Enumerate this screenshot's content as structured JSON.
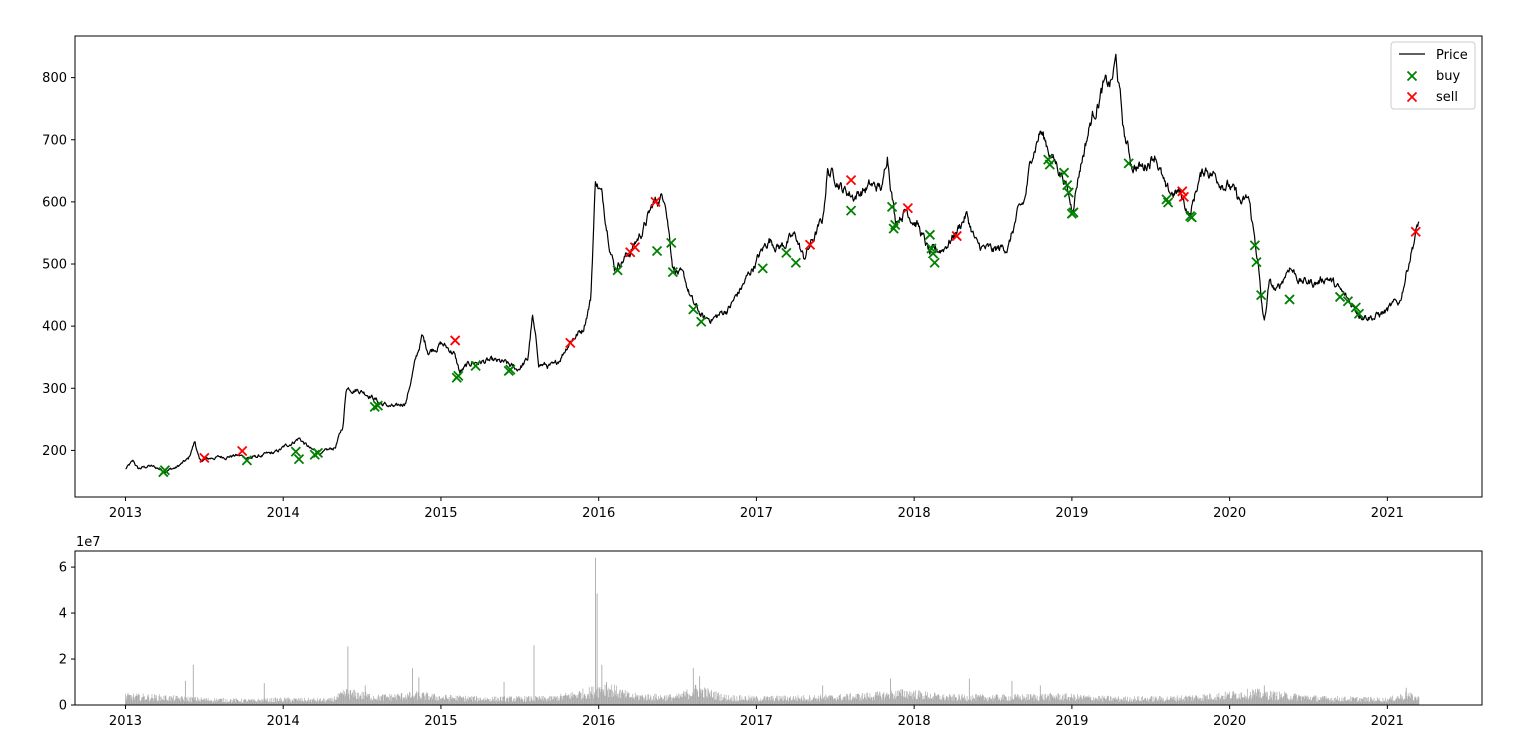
{
  "chart_data": [
    {
      "type": "line",
      "title": "",
      "xlabel": "",
      "ylabel": "",
      "xlim": [
        2012.68,
        2021.6
      ],
      "ylim": [
        125,
        867
      ],
      "x_ticks": [
        2013,
        2014,
        2015,
        2016,
        2017,
        2018,
        2019,
        2020,
        2021
      ],
      "x_tick_labels": [
        "2013",
        "2014",
        "2015",
        "2016",
        "2017",
        "2018",
        "2019",
        "2020",
        "2021"
      ],
      "y_ticks": [
        200,
        300,
        400,
        500,
        600,
        700,
        800
      ],
      "y_tick_labels": [
        "200",
        "300",
        "400",
        "500",
        "600",
        "700",
        "800"
      ],
      "grid": false,
      "legend_position": "top-right",
      "price_anchors": [
        [
          2013.0,
          170
        ],
        [
          2013.05,
          182
        ],
        [
          2013.08,
          170
        ],
        [
          2013.15,
          175
        ],
        [
          2013.25,
          168
        ],
        [
          2013.32,
          172
        ],
        [
          2013.4,
          186
        ],
        [
          2013.44,
          215
        ],
        [
          2013.47,
          182
        ],
        [
          2013.55,
          188
        ],
        [
          2013.7,
          192
        ],
        [
          2013.8,
          188
        ],
        [
          2013.95,
          196
        ],
        [
          2014.05,
          212
        ],
        [
          2014.1,
          220
        ],
        [
          2014.18,
          200
        ],
        [
          2014.25,
          195
        ],
        [
          2014.33,
          205
        ],
        [
          2014.38,
          240
        ],
        [
          2014.4,
          302
        ],
        [
          2014.48,
          298
        ],
        [
          2014.55,
          290
        ],
        [
          2014.62,
          275
        ],
        [
          2014.72,
          268
        ],
        [
          2014.78,
          280
        ],
        [
          2014.83,
          335
        ],
        [
          2014.88,
          383
        ],
        [
          2014.92,
          360
        ],
        [
          2015.0,
          372
        ],
        [
          2015.08,
          358
        ],
        [
          2015.12,
          325
        ],
        [
          2015.2,
          342
        ],
        [
          2015.3,
          343
        ],
        [
          2015.4,
          340
        ],
        [
          2015.48,
          330
        ],
        [
          2015.55,
          345
        ],
        [
          2015.58,
          415
        ],
        [
          2015.62,
          340
        ],
        [
          2015.72,
          333
        ],
        [
          2015.82,
          378
        ],
        [
          2015.9,
          395
        ],
        [
          2015.95,
          445
        ],
        [
          2015.98,
          638
        ],
        [
          2016.02,
          610
        ],
        [
          2016.05,
          565
        ],
        [
          2016.1,
          495
        ],
        [
          2016.2,
          520
        ],
        [
          2016.28,
          555
        ],
        [
          2016.35,
          598
        ],
        [
          2016.42,
          612
        ],
        [
          2016.47,
          500
        ],
        [
          2016.55,
          470
        ],
        [
          2016.6,
          435
        ],
        [
          2016.67,
          410
        ],
        [
          2016.75,
          415
        ],
        [
          2016.83,
          430
        ],
        [
          2016.92,
          468
        ],
        [
          2017.0,
          505
        ],
        [
          2017.08,
          540
        ],
        [
          2017.15,
          528
        ],
        [
          2017.25,
          545
        ],
        [
          2017.3,
          508
        ],
        [
          2017.35,
          535
        ],
        [
          2017.42,
          570
        ],
        [
          2017.45,
          650
        ],
        [
          2017.5,
          642
        ],
        [
          2017.55,
          620
        ],
        [
          2017.62,
          610
        ],
        [
          2017.72,
          625
        ],
        [
          2017.8,
          622
        ],
        [
          2017.83,
          680
        ],
        [
          2017.88,
          572
        ],
        [
          2017.95,
          588
        ],
        [
          2018.02,
          565
        ],
        [
          2018.1,
          515
        ],
        [
          2018.18,
          525
        ],
        [
          2018.25,
          545
        ],
        [
          2018.33,
          580
        ],
        [
          2018.4,
          528
        ],
        [
          2018.5,
          520
        ],
        [
          2018.6,
          530
        ],
        [
          2018.65,
          575
        ],
        [
          2018.7,
          600
        ],
        [
          2018.75,
          680
        ],
        [
          2018.8,
          715
        ],
        [
          2018.88,
          670
        ],
        [
          2018.95,
          640
        ],
        [
          2019.0,
          588
        ],
        [
          2019.05,
          655
        ],
        [
          2019.12,
          730
        ],
        [
          2019.2,
          785
        ],
        [
          2019.25,
          790
        ],
        [
          2019.28,
          828
        ],
        [
          2019.33,
          710
        ],
        [
          2019.38,
          660
        ],
        [
          2019.45,
          655
        ],
        [
          2019.53,
          680
        ],
        [
          2019.6,
          612
        ],
        [
          2019.68,
          615
        ],
        [
          2019.75,
          578
        ],
        [
          2019.8,
          632
        ],
        [
          2019.85,
          655
        ],
        [
          2019.92,
          640
        ],
        [
          2020.0,
          625
        ],
        [
          2020.08,
          595
        ],
        [
          2020.12,
          605
        ],
        [
          2020.18,
          505
        ],
        [
          2020.2,
          440
        ],
        [
          2020.22,
          404
        ],
        [
          2020.25,
          468
        ],
        [
          2020.3,
          455
        ],
        [
          2020.38,
          498
        ],
        [
          2020.45,
          472
        ],
        [
          2020.55,
          470
        ],
        [
          2020.62,
          480
        ],
        [
          2020.72,
          450
        ],
        [
          2020.82,
          422
        ],
        [
          2020.92,
          415
        ],
        [
          2021.0,
          425
        ],
        [
          2021.08,
          440
        ],
        [
          2021.15,
          520
        ],
        [
          2021.2,
          568
        ]
      ],
      "series": [
        {
          "name": "buy",
          "marker": "x",
          "color": "#008000",
          "points": [
            [
              2013.24,
              165
            ],
            [
              2013.25,
              168
            ],
            [
              2013.77,
              184
            ],
            [
              2014.08,
              198
            ],
            [
              2014.1,
              186
            ],
            [
              2014.2,
              193
            ],
            [
              2014.22,
              196
            ],
            [
              2014.58,
              270
            ],
            [
              2014.6,
              272
            ],
            [
              2015.1,
              317
            ],
            [
              2015.11,
              320
            ],
            [
              2015.22,
              336
            ],
            [
              2015.43,
              328
            ],
            [
              2015.44,
              330
            ],
            [
              2016.12,
              490
            ],
            [
              2016.37,
              521
            ],
            [
              2016.46,
              534
            ],
            [
              2016.47,
              487
            ],
            [
              2016.6,
              427
            ],
            [
              2016.65,
              407
            ],
            [
              2017.04,
              493
            ],
            [
              2017.19,
              518
            ],
            [
              2017.25,
              502
            ],
            [
              2017.6,
              586
            ],
            [
              2017.86,
              592
            ],
            [
              2017.87,
              557
            ],
            [
              2017.88,
              563
            ],
            [
              2018.1,
              547
            ],
            [
              2018.11,
              525
            ],
            [
              2018.12,
              517
            ],
            [
              2018.13,
              502
            ],
            [
              2018.85,
              668
            ],
            [
              2018.86,
              660
            ],
            [
              2018.95,
              647
            ],
            [
              2018.97,
              627
            ],
            [
              2018.98,
              615
            ],
            [
              2019.0,
              581
            ],
            [
              2019.01,
              583
            ],
            [
              2019.36,
              662
            ],
            [
              2019.6,
              604
            ],
            [
              2019.61,
              599
            ],
            [
              2019.75,
              577
            ],
            [
              2019.76,
              575
            ],
            [
              2020.16,
              530
            ],
            [
              2020.17,
              503
            ],
            [
              2020.2,
              450
            ],
            [
              2020.38,
              443
            ],
            [
              2020.7,
              447
            ],
            [
              2020.75,
              440
            ],
            [
              2020.8,
              430
            ],
            [
              2020.82,
              420
            ]
          ]
        },
        {
          "name": "sell",
          "marker": "x",
          "color": "#ff0000",
          "points": [
            [
              2013.5,
              188
            ],
            [
              2013.74,
              199
            ],
            [
              2015.09,
              377
            ],
            [
              2015.82,
              373
            ],
            [
              2016.2,
              519
            ],
            [
              2016.23,
              527
            ],
            [
              2016.36,
              600
            ],
            [
              2017.34,
              531
            ],
            [
              2017.6,
              635
            ],
            [
              2017.96,
              590
            ],
            [
              2018.27,
              545
            ],
            [
              2019.7,
              617
            ],
            [
              2019.71,
              608
            ],
            [
              2021.18,
              552
            ]
          ]
        }
      ],
      "price_series_name": "Price",
      "price_color": "#000000"
    },
    {
      "type": "bar",
      "title": "",
      "xlabel": "",
      "ylabel": "",
      "offset_label": "1e7",
      "xlim": [
        2012.68,
        2021.6
      ],
      "ylim": [
        0,
        6.7
      ],
      "x_ticks": [
        2013,
        2014,
        2015,
        2016,
        2017,
        2018,
        2019,
        2020,
        2021
      ],
      "x_tick_labels": [
        "2013",
        "2014",
        "2015",
        "2016",
        "2017",
        "2018",
        "2019",
        "2020",
        "2021"
      ],
      "y_ticks": [
        0,
        2,
        4,
        6
      ],
      "y_tick_labels": [
        "0",
        "2",
        "4",
        "6"
      ],
      "color": "#aaaaaa",
      "volume_profile": [
        [
          2013.0,
          0.4
        ],
        [
          2013.2,
          0.35
        ],
        [
          2013.5,
          0.25
        ],
        [
          2013.8,
          0.2
        ],
        [
          2014.0,
          0.25
        ],
        [
          2014.3,
          0.22
        ],
        [
          2014.4,
          0.55
        ],
        [
          2014.6,
          0.35
        ],
        [
          2014.85,
          0.45
        ],
        [
          2015.0,
          0.35
        ],
        [
          2015.3,
          0.28
        ],
        [
          2015.7,
          0.3
        ],
        [
          2015.95,
          0.6
        ],
        [
          2016.05,
          0.8
        ],
        [
          2016.2,
          0.4
        ],
        [
          2016.5,
          0.35
        ],
        [
          2016.62,
          0.7
        ],
        [
          2016.8,
          0.35
        ],
        [
          2017.0,
          0.3
        ],
        [
          2017.5,
          0.35
        ],
        [
          2017.8,
          0.45
        ],
        [
          2017.95,
          0.55
        ],
        [
          2018.2,
          0.35
        ],
        [
          2018.6,
          0.35
        ],
        [
          2018.9,
          0.4
        ],
        [
          2019.3,
          0.28
        ],
        [
          2019.6,
          0.3
        ],
        [
          2019.9,
          0.4
        ],
        [
          2020.15,
          0.55
        ],
        [
          2020.3,
          0.45
        ],
        [
          2020.6,
          0.3
        ],
        [
          2021.0,
          0.25
        ],
        [
          2021.12,
          0.45
        ],
        [
          2021.2,
          0.3
        ]
      ],
      "volume_spikes": [
        [
          2013.38,
          1.05
        ],
        [
          2013.43,
          1.75
        ],
        [
          2013.88,
          0.95
        ],
        [
          2014.41,
          2.55
        ],
        [
          2014.52,
          0.85
        ],
        [
          2014.82,
          1.6
        ],
        [
          2014.86,
          1.2
        ],
        [
          2015.4,
          1.0
        ],
        [
          2015.59,
          2.6
        ],
        [
          2015.98,
          6.4
        ],
        [
          2015.99,
          4.85
        ],
        [
          2016.02,
          1.75
        ],
        [
          2016.05,
          1.0
        ],
        [
          2016.6,
          1.6
        ],
        [
          2016.64,
          1.25
        ],
        [
          2017.42,
          0.85
        ],
        [
          2017.85,
          1.15
        ],
        [
          2018.35,
          1.15
        ],
        [
          2018.62,
          1.05
        ],
        [
          2018.8,
          0.85
        ],
        [
          2020.22,
          0.85
        ],
        [
          2021.12,
          0.75
        ]
      ]
    }
  ],
  "legend": {
    "items": [
      {
        "label": "Price",
        "symbol": "line",
        "color": "#000000"
      },
      {
        "label": "buy",
        "symbol": "x",
        "color": "#008000"
      },
      {
        "label": "sell",
        "symbol": "x",
        "color": "#ff0000"
      }
    ]
  }
}
